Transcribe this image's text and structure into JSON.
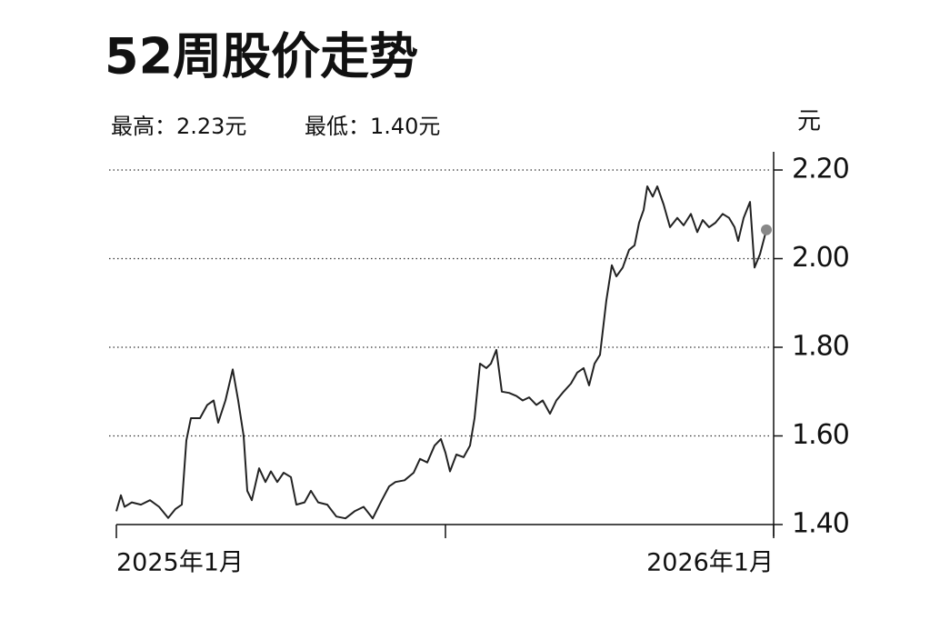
{
  "chart_data": {
    "type": "line",
    "title": "52周股价走势",
    "annotations": [
      "最高：2.23元",
      "最低：1.40元"
    ],
    "y_label": "元",
    "x": [
      0,
      5,
      9,
      17,
      27,
      37,
      47,
      57,
      65,
      72,
      77,
      82,
      92,
      100,
      107,
      112,
      120,
      128,
      134,
      140,
      144,
      149,
      157,
      164,
      170,
      177,
      184,
      192,
      198,
      207,
      214,
      222,
      232,
      242,
      252,
      262,
      272,
      282,
      292,
      300,
      307,
      317,
      327,
      334,
      342,
      350,
      357,
      362,
      367,
      374,
      382,
      389,
      394,
      400,
      407,
      412,
      418,
      424,
      432,
      440,
      447,
      454,
      462,
      469,
      477,
      484,
      492,
      500,
      507,
      514,
      520,
      526,
      532,
      539,
      545,
      550,
      557,
      564,
      570,
      575,
      580,
      584,
      590,
      595,
      602,
      609,
      617,
      624,
      632,
      639,
      645,
      652,
      659,
      667,
      674,
      680,
      684,
      690,
      697,
      702,
      708,
      715
    ],
    "values": [
      1.43,
      1.466,
      1.44,
      1.45,
      1.445,
      1.455,
      1.44,
      1.415,
      1.435,
      1.445,
      1.59,
      1.64,
      1.64,
      1.67,
      1.68,
      1.63,
      1.68,
      1.75,
      1.68,
      1.6,
      1.476,
      1.455,
      1.527,
      1.496,
      1.52,
      1.496,
      1.517,
      1.507,
      1.445,
      1.45,
      1.476,
      1.45,
      1.445,
      1.418,
      1.414,
      1.43,
      1.44,
      1.414,
      1.455,
      1.486,
      1.496,
      1.5,
      1.517,
      1.548,
      1.54,
      1.578,
      1.593,
      1.562,
      1.52,
      1.558,
      1.552,
      1.578,
      1.64,
      1.763,
      1.753,
      1.763,
      1.794,
      1.7,
      1.697,
      1.69,
      1.68,
      1.687,
      1.67,
      1.68,
      1.65,
      1.68,
      1.7,
      1.718,
      1.743,
      1.753,
      1.714,
      1.763,
      1.783,
      1.906,
      1.985,
      1.96,
      1.98,
      2.02,
      2.03,
      2.081,
      2.11,
      2.163,
      2.14,
      2.163,
      2.122,
      2.071,
      2.092,
      2.075,
      2.101,
      2.06,
      2.087,
      2.071,
      2.081,
      2.101,
      2.092,
      2.071,
      2.04,
      2.092,
      2.128,
      1.98,
      2.01,
      2.065
    ],
    "color": "#222222",
    "end_marker_color": "#888888",
    "xlim": [
      0,
      723
    ],
    "xticks": [
      {
        "value": 0,
        "label": "2025年1月"
      },
      {
        "value": 362,
        "label": null
      },
      {
        "value": 723,
        "label": "2026年1月"
      }
    ],
    "ylim": [
      1.4,
      2.2
    ],
    "yticks": [
      {
        "value": 1.4,
        "label": "1.40"
      },
      {
        "value": 1.6,
        "label": "1.60"
      },
      {
        "value": 1.8,
        "label": "1.80"
      },
      {
        "value": 2.0,
        "label": "2.00"
      },
      {
        "value": 2.2,
        "label": "2.20"
      }
    ],
    "grid": true
  }
}
